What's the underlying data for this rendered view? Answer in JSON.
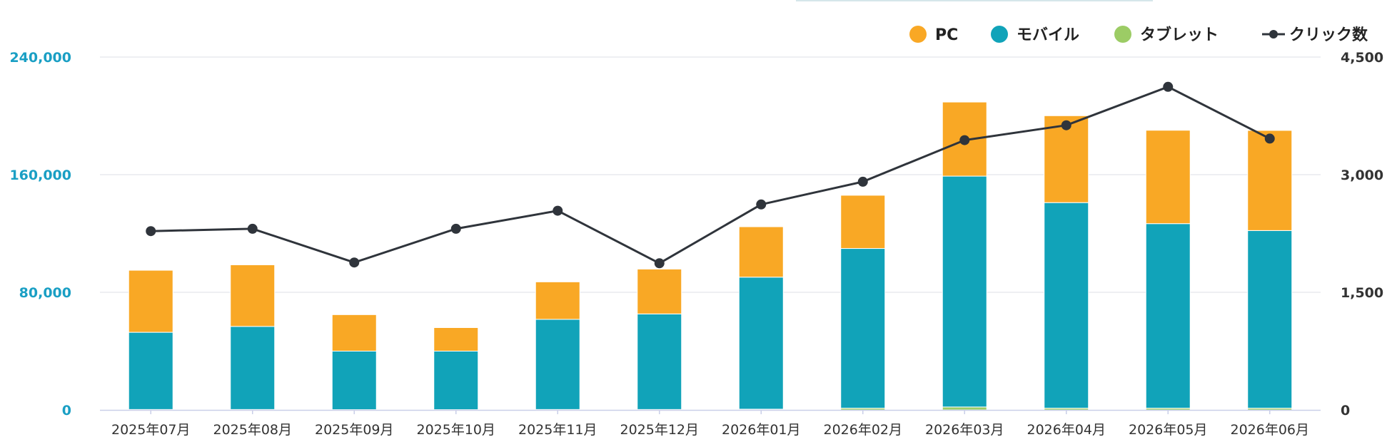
{
  "colors": {
    "pc": "#f9a825",
    "mobile": "#11a3b9",
    "tablet": "#9ccc65",
    "clicks": "#2f343b",
    "left_axis_text": "#1a9fc4",
    "right_axis_text": "#333333",
    "grid": "#dcdfe4",
    "x_axis_line": "#c9cfe8"
  },
  "chart_data": {
    "type": "bar",
    "stacked": true,
    "categories": [
      "2025年07月",
      "2025年08月",
      "2025年09月",
      "2025年10月",
      "2025年11月",
      "2025年12月",
      "2026年01月",
      "2026年02月",
      "2026年03月",
      "2026年04月",
      "2026年05月",
      "2026年06月"
    ],
    "series": [
      {
        "name": "タブレット",
        "key": "tablet",
        "axis": "left",
        "values": [
          300,
          300,
          200,
          200,
          300,
          300,
          500,
          1200,
          2000,
          1200,
          1200,
          1200
        ]
      },
      {
        "name": "モバイル",
        "key": "mobile",
        "axis": "left",
        "values": [
          52500,
          56500,
          39800,
          39800,
          61300,
          65000,
          89800,
          108600,
          157000,
          139800,
          125500,
          120800
        ]
      },
      {
        "name": "PC",
        "key": "pc",
        "axis": "left",
        "values": [
          42200,
          41900,
          24800,
          16000,
          25500,
          30500,
          34300,
          36200,
          50400,
          59100,
          63500,
          68100
        ]
      },
      {
        "name": "クリック数",
        "key": "clicks",
        "axis": "right",
        "type": "line",
        "values": [
          2280,
          2310,
          1880,
          2310,
          2540,
          1870,
          2620,
          2910,
          3440,
          3630,
          4120,
          3460
        ]
      }
    ],
    "legend": {
      "position": "top-right",
      "items": [
        {
          "label": "PC",
          "key": "pc",
          "marker": "dot"
        },
        {
          "label": "モバイル",
          "key": "mobile",
          "marker": "dot"
        },
        {
          "label": "タブレット",
          "key": "tablet",
          "marker": "dot"
        },
        {
          "label": "クリック数",
          "key": "clicks",
          "marker": "line-dot"
        }
      ]
    },
    "y_left": {
      "min": 0,
      "max": 240000,
      "ticks": [
        "0",
        "80,000",
        "160,000",
        "240,000"
      ],
      "tick_values": [
        0,
        80000,
        160000,
        240000
      ]
    },
    "y_right": {
      "min": 0,
      "max": 4500,
      "ticks": [
        "0",
        "1,500",
        "3,000",
        "4,500"
      ],
      "tick_values": [
        0,
        1500,
        3000,
        4500
      ]
    },
    "grid": true,
    "title": "",
    "xlabel": "",
    "ylabel": ""
  }
}
